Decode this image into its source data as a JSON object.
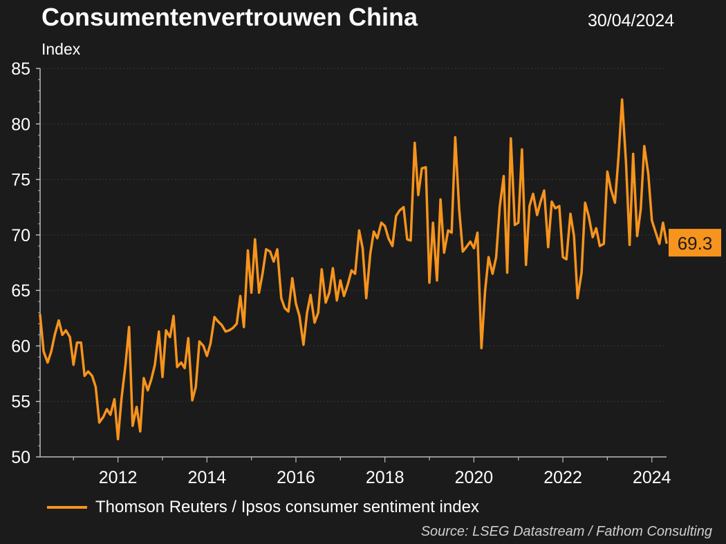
{
  "header": {
    "title": "Consumentenvertrouwen China",
    "date": "30/04/2024"
  },
  "footer": {
    "source": "Source: LSEG Datastream / Fathom Consulting"
  },
  "chart_data": {
    "type": "line",
    "title": "Consumentenvertrouwen China",
    "ylabel": "Index",
    "ylim": [
      50,
      85
    ],
    "yticks": [
      50,
      55,
      60,
      65,
      70,
      75,
      80,
      85
    ],
    "xlim": [
      2010.25,
      2024.33
    ],
    "xticks": [
      2012,
      2014,
      2016,
      2018,
      2020,
      2022,
      2024
    ],
    "grid": true,
    "legend_position": "bottom-left",
    "last_value_label": "69.3",
    "colors": {
      "line": "#f7941d",
      "background": "#1b1b1b",
      "grid": "#3a3a3a"
    },
    "series": [
      {
        "name": "Thomson Reuters / Ipsos consumer sentiment index",
        "x": [
          2010.25,
          2010.33,
          2010.42,
          2010.5,
          2010.58,
          2010.67,
          2010.75,
          2010.83,
          2010.92,
          2011.0,
          2011.08,
          2011.17,
          2011.25,
          2011.33,
          2011.42,
          2011.5,
          2011.58,
          2011.67,
          2011.75,
          2011.83,
          2011.92,
          2012.0,
          2012.08,
          2012.17,
          2012.25,
          2012.33,
          2012.42,
          2012.5,
          2012.58,
          2012.67,
          2012.75,
          2012.83,
          2012.92,
          2013.0,
          2013.08,
          2013.17,
          2013.25,
          2013.33,
          2013.42,
          2013.5,
          2013.58,
          2013.67,
          2013.75,
          2013.83,
          2013.92,
          2014.0,
          2014.08,
          2014.17,
          2014.25,
          2014.33,
          2014.42,
          2014.5,
          2014.58,
          2014.67,
          2014.75,
          2014.83,
          2014.92,
          2015.0,
          2015.08,
          2015.17,
          2015.25,
          2015.33,
          2015.42,
          2015.5,
          2015.58,
          2015.67,
          2015.75,
          2015.83,
          2015.92,
          2016.0,
          2016.08,
          2016.17,
          2016.25,
          2016.33,
          2016.42,
          2016.5,
          2016.58,
          2016.67,
          2016.75,
          2016.83,
          2016.92,
          2017.0,
          2017.08,
          2017.17,
          2017.25,
          2017.33,
          2017.42,
          2017.5,
          2017.58,
          2017.67,
          2017.75,
          2017.83,
          2017.92,
          2018.0,
          2018.08,
          2018.17,
          2018.25,
          2018.33,
          2018.42,
          2018.5,
          2018.58,
          2018.67,
          2018.75,
          2018.83,
          2018.92,
          2019.0,
          2019.08,
          2019.17,
          2019.25,
          2019.33,
          2019.42,
          2019.5,
          2019.58,
          2019.67,
          2019.75,
          2019.83,
          2019.92,
          2020.0,
          2020.08,
          2020.17,
          2020.25,
          2020.33,
          2020.42,
          2020.5,
          2020.58,
          2020.67,
          2020.75,
          2020.83,
          2020.92,
          2021.0,
          2021.08,
          2021.17,
          2021.25,
          2021.33,
          2021.42,
          2021.5,
          2021.58,
          2021.67,
          2021.75,
          2021.83,
          2021.92,
          2022.0,
          2022.08,
          2022.17,
          2022.25,
          2022.33,
          2022.42,
          2022.5,
          2022.58,
          2022.67,
          2022.75,
          2022.83,
          2022.92,
          2023.0,
          2023.08,
          2023.17,
          2023.25,
          2023.33,
          2023.42,
          2023.5,
          2023.58,
          2023.67,
          2023.75,
          2023.83,
          2023.92,
          2024.0,
          2024.08,
          2024.17,
          2024.25,
          2024.33
        ],
        "values": [
          62.8,
          59.5,
          58.5,
          59.5,
          61.0,
          62.3,
          61.0,
          61.4,
          60.8,
          58.3,
          60.3,
          60.3,
          57.3,
          57.7,
          57.3,
          56.3,
          53.1,
          53.6,
          54.3,
          53.8,
          55.2,
          51.6,
          55.3,
          58.3,
          61.7,
          52.8,
          54.5,
          52.3,
          57.1,
          56.0,
          57.0,
          58.3,
          61.3,
          57.2,
          61.4,
          60.8,
          62.7,
          58.1,
          58.5,
          58.0,
          60.7,
          55.1,
          56.3,
          60.4,
          60.0,
          59.1,
          60.2,
          62.6,
          62.2,
          61.9,
          61.3,
          61.4,
          61.6,
          62.0,
          64.5,
          61.7,
          68.6,
          64.8,
          69.6,
          64.8,
          66.5,
          68.7,
          68.5,
          67.6,
          68.7,
          64.3,
          63.4,
          63.1,
          66.1,
          63.8,
          62.7,
          60.1,
          63.0,
          64.6,
          62.1,
          63.0,
          66.9,
          63.9,
          64.8,
          67.0,
          64.1,
          65.9,
          64.5,
          65.6,
          66.8,
          66.5,
          70.4,
          68.8,
          64.3,
          68.3,
          70.3,
          69.7,
          71.1,
          70.8,
          69.7,
          69.0,
          71.7,
          72.2,
          72.5,
          69.6,
          69.5,
          78.3,
          73.6,
          76.0,
          76.1,
          65.7,
          71.1,
          65.9,
          73.2,
          68.4,
          70.4,
          70.2,
          78.8,
          72.3,
          68.5,
          68.9,
          69.4,
          68.8,
          70.2,
          59.8,
          64.9,
          68.0,
          66.5,
          68.0,
          72.5,
          75.3,
          66.6,
          78.7,
          70.9,
          71.1,
          77.7,
          67.3,
          72.6,
          73.7,
          71.8,
          73.0,
          74.0,
          68.9,
          73.0,
          72.4,
          72.6,
          68.0,
          67.8,
          71.9,
          69.9,
          64.3,
          66.6,
          72.9,
          71.7,
          69.8,
          70.6,
          69.0,
          69.2,
          75.7,
          74.1,
          72.9,
          77.0,
          82.2,
          76.5,
          69.1,
          77.3,
          69.9,
          72.3,
          78.0,
          75.5,
          71.3,
          70.3,
          69.2,
          71.1,
          69.3
        ]
      }
    ]
  }
}
